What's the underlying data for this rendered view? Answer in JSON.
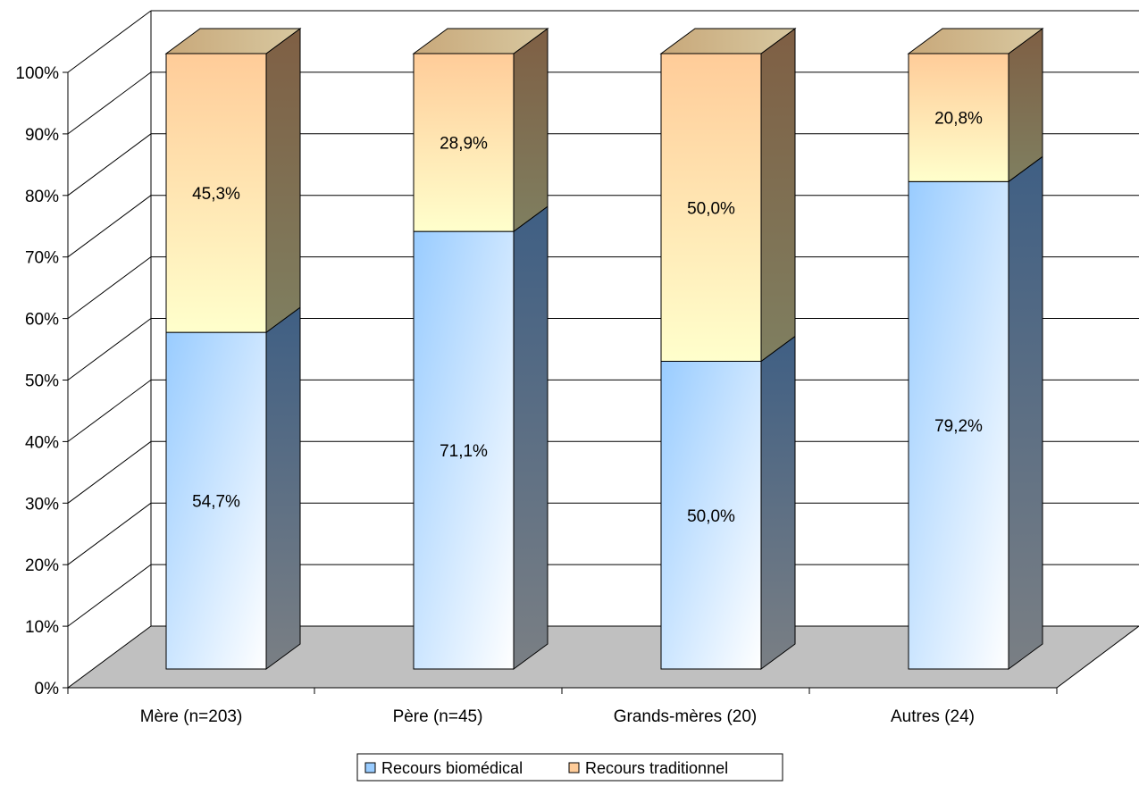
{
  "chart_data": {
    "type": "bar",
    "stacked": true,
    "three_d": true,
    "title": "",
    "xlabel": "",
    "ylabel": "",
    "ylim": [
      0,
      100
    ],
    "y_ticks": [
      "0%",
      "10%",
      "20%",
      "30%",
      "40%",
      "50%",
      "60%",
      "70%",
      "80%",
      "90%",
      "100%"
    ],
    "grid": true,
    "legend_position": "bottom",
    "categories": [
      "Mère (n=203)",
      "Père (n=45)",
      "Grands-mères (20)",
      "Autres (24)"
    ],
    "series": [
      {
        "name": "Recours biomédical",
        "values": [
          54.7,
          71.1,
          50.0,
          79.2
        ],
        "labels": [
          "54,7%",
          "71,1%",
          "50,0%",
          "79,2%"
        ],
        "color": "#99ccff"
      },
      {
        "name": "Recours traditionnel",
        "values": [
          45.3,
          28.9,
          50.0,
          20.8
        ],
        "labels": [
          "45,3%",
          "28,9%",
          "50,0%",
          "20,8%"
        ],
        "color": "#ffcc99"
      }
    ],
    "floor_color": "#c0c0c0"
  }
}
